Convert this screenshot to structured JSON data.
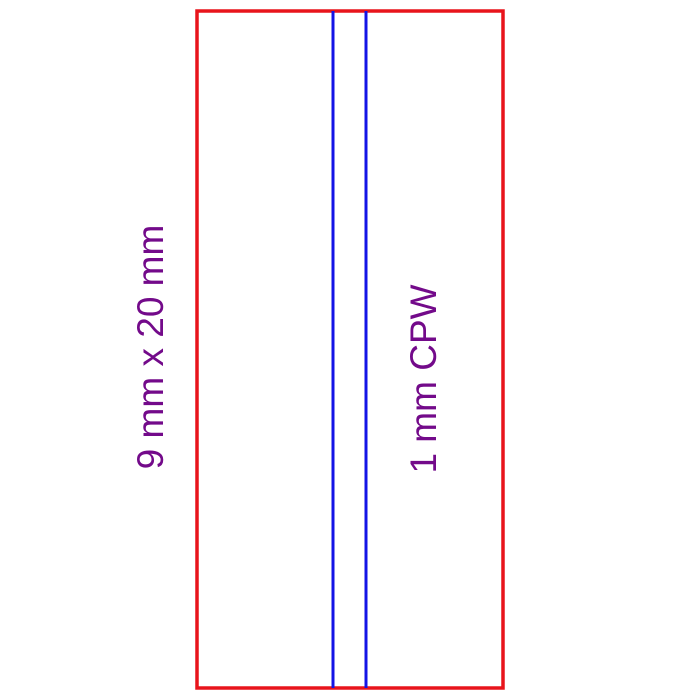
{
  "diagram": {
    "substrate_label": "9 mm x 20 mm",
    "cpw_label": "1 mm CPW",
    "colors": {
      "substrate_outline": "#e8141b",
      "cpw_lines": "#1414e6",
      "label_text": "#730a8a",
      "background": "#ffffff"
    }
  }
}
